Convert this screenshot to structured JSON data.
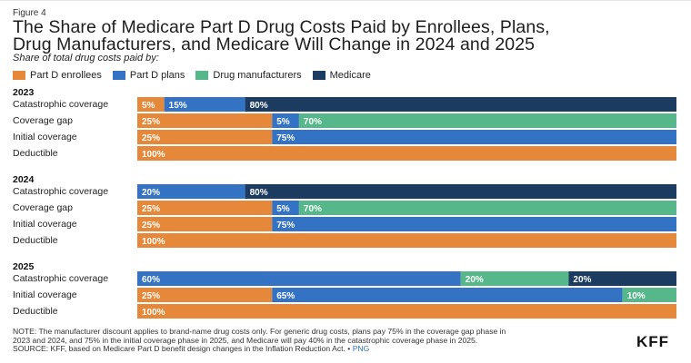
{
  "figure_label": "Figure 4",
  "title_line1": "The Share of Medicare Part D Drug Costs Paid by Enrollees, Plans,",
  "title_line2": "Drug Manufacturers, and Medicare Will Change in 2024 and 2025",
  "subtitle": "Share of total drug costs paid by:",
  "colors": {
    "enrollees": "#e5883a",
    "plans": "#3473c3",
    "manufacturers": "#56b88a",
    "medicare": "#1b3b60"
  },
  "chart_data": {
    "type": "bar",
    "orientation": "horizontal",
    "stacked": true,
    "title": "The Share of Medicare Part D Drug Costs Paid by Enrollees, Plans, Drug Manufacturers, and Medicare Will Change in 2024 and 2025",
    "subtitle": "Share of total drug costs paid by:",
    "xlim": [
      0,
      100
    ],
    "unit": "%",
    "legend": [
      {
        "key": "enrollees",
        "label": "Part D enrollees"
      },
      {
        "key": "plans",
        "label": "Part D plans"
      },
      {
        "key": "manufacturers",
        "label": "Drug manufacturers"
      },
      {
        "key": "medicare",
        "label": "Medicare"
      }
    ],
    "legend_position": "top-left",
    "groups": [
      {
        "year": "2023",
        "rows": [
          {
            "label": "Catastrophic coverage",
            "segments": [
              {
                "key": "enrollees",
                "value": 5
              },
              {
                "key": "plans",
                "value": 15
              },
              {
                "key": "medicare",
                "value": 80
              }
            ]
          },
          {
            "label": "Coverage gap",
            "segments": [
              {
                "key": "enrollees",
                "value": 25
              },
              {
                "key": "plans",
                "value": 5
              },
              {
                "key": "manufacturers",
                "value": 70
              }
            ]
          },
          {
            "label": "Initial coverage",
            "segments": [
              {
                "key": "enrollees",
                "value": 25
              },
              {
                "key": "plans",
                "value": 75
              }
            ]
          },
          {
            "label": "Deductible",
            "segments": [
              {
                "key": "enrollees",
                "value": 100
              }
            ]
          }
        ]
      },
      {
        "year": "2024",
        "rows": [
          {
            "label": "Catastrophic coverage",
            "segments": [
              {
                "key": "plans",
                "value": 20
              },
              {
                "key": "medicare",
                "value": 80
              }
            ]
          },
          {
            "label": "Coverage gap",
            "segments": [
              {
                "key": "enrollees",
                "value": 25
              },
              {
                "key": "plans",
                "value": 5
              },
              {
                "key": "manufacturers",
                "value": 70
              }
            ]
          },
          {
            "label": "Initial coverage",
            "segments": [
              {
                "key": "enrollees",
                "value": 25
              },
              {
                "key": "plans",
                "value": 75
              }
            ]
          },
          {
            "label": "Deductible",
            "segments": [
              {
                "key": "enrollees",
                "value": 100
              }
            ]
          }
        ]
      },
      {
        "year": "2025",
        "rows": [
          {
            "label": "Catastrophic coverage",
            "segments": [
              {
                "key": "plans",
                "value": 60
              },
              {
                "key": "manufacturers",
                "value": 20
              },
              {
                "key": "medicare",
                "value": 20
              }
            ]
          },
          {
            "label": "Initial coverage",
            "segments": [
              {
                "key": "enrollees",
                "value": 25
              },
              {
                "key": "plans",
                "value": 65
              },
              {
                "key": "manufacturers",
                "value": 10
              }
            ]
          },
          {
            "label": "Deductible",
            "segments": [
              {
                "key": "enrollees",
                "value": 100
              }
            ]
          }
        ]
      }
    ]
  },
  "footnote": {
    "note_line1": "NOTE: The manufacturer discount applies to brand-name drug costs only. For generic drug costs, plans pay 75% in the coverage gap phase in",
    "note_line2": "2023 and 2024, and 75% in the initial coverage phase in 2025, and Medicare will pay 40% in the catastrophic coverage phase in 2025.",
    "source": "SOURCE: KFF, based on Medicare Part D benefit design changes in the Inflation Reduction Act. • ",
    "png_link": "PNG"
  },
  "logo": "KFF"
}
